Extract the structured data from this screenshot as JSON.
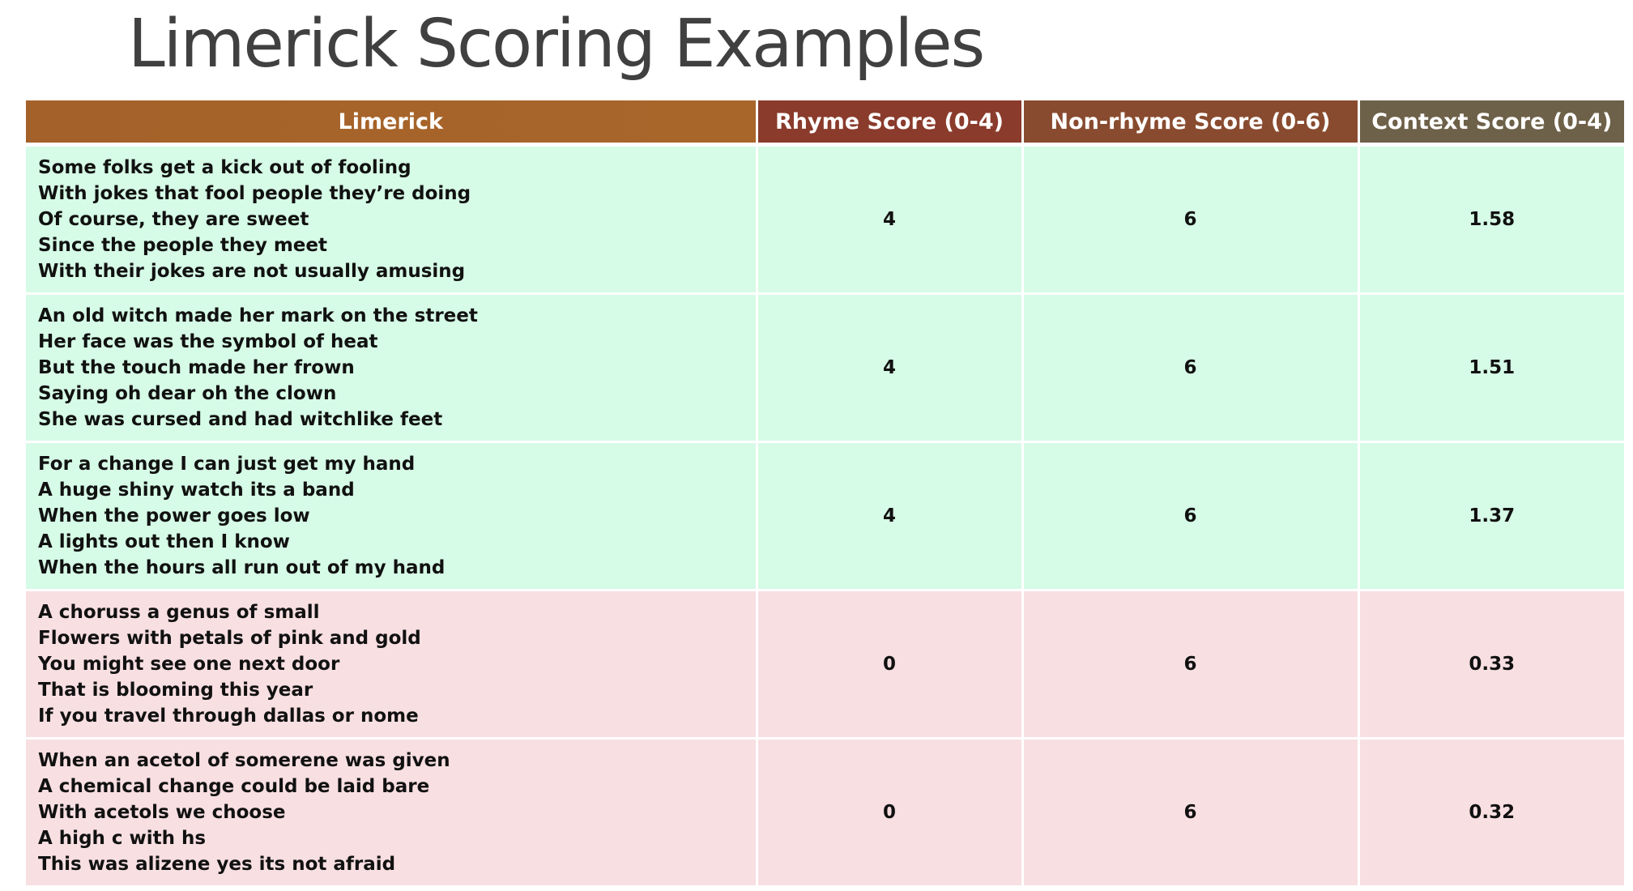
{
  "title": "Limerick Scoring Examples",
  "colors": {
    "header_limerick": "#a6642a",
    "header_rhyme": "#8a3b2c",
    "header_nonrhyme": "#894b2f",
    "header_context": "#6e6149",
    "row_good": "#d6fbe6",
    "row_bad": "#f8dfe2"
  },
  "table": {
    "headers": [
      "Limerick",
      "Rhyme Score (0-4)",
      "Non-rhyme Score (0-6)",
      "Context Score (0-4)"
    ],
    "rows": [
      {
        "status": "good",
        "lines": [
          "Some folks get a kick out of fooling",
          "With jokes that fool people  they’re doing",
          "Of course, they are sweet",
          "Since the people they meet",
          "With their jokes are not usually amusing"
        ],
        "rhyme": "4",
        "nonrhyme": "6",
        "context": "1.58"
      },
      {
        "status": "good",
        "lines": [
          "An old witch made her mark on the street",
          "Her face was the symbol of heat",
          "But the touch made her frown",
          "Saying oh dear oh the clown",
          "She was cursed and had witchlike feet"
        ],
        "rhyme": "4",
        "nonrhyme": "6",
        "context": "1.51"
      },
      {
        "status": "good",
        "lines": [
          "For a change I can just get my hand",
          "A huge shiny watch its a band",
          "When the power goes low",
          "A lights out then I know",
          "When the hours all run out of my hand"
        ],
        "rhyme": "4",
        "nonrhyme": "6",
        "context": "1.37"
      },
      {
        "status": "bad",
        "lines": [
          "A choruss  a genus of  small",
          "Flowers with petals of pink and gold",
          "You might see one next door",
          "That is blooming this year",
          "If you travel through dallas or nome"
        ],
        "rhyme": "0",
        "nonrhyme": "6",
        "context": "0.33"
      },
      {
        "status": "bad",
        "lines": [
          "When an acetol of somerene was given",
          "A chemical change could be laid bare",
          "With acetols we choose",
          "A high c with hs",
          "This was alizene yes its not afraid"
        ],
        "rhyme": "0",
        "nonrhyme": "6",
        "context": "0.32"
      }
    ]
  }
}
